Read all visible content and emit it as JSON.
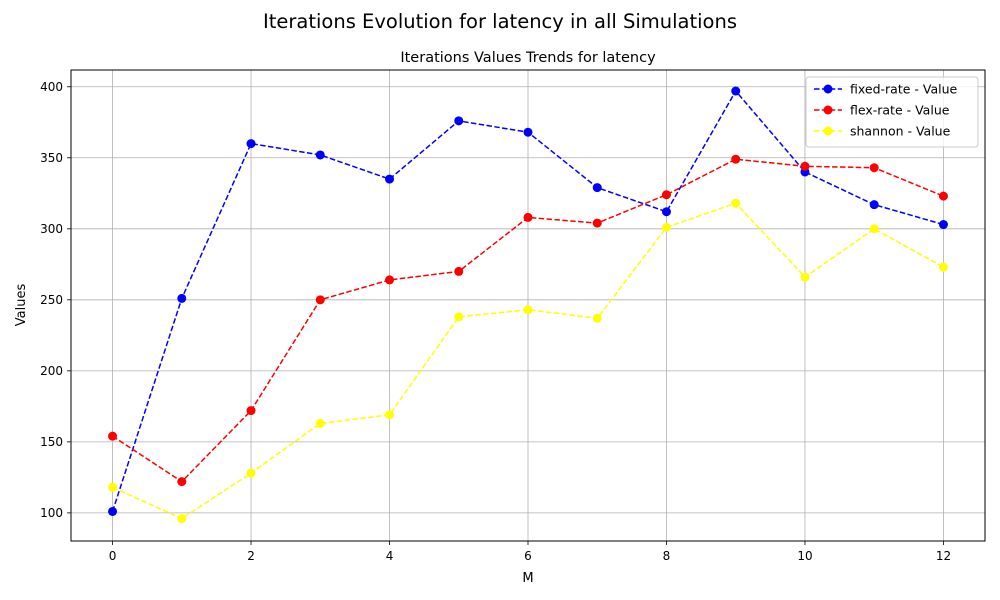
{
  "figure": {
    "suptitle": "Iterations Evolution for latency in all Simulations"
  },
  "chart_data": {
    "type": "line",
    "title": "Iterations Values Trends for latency",
    "xlabel": "M",
    "ylabel": "Values",
    "x": [
      0,
      1,
      2,
      3,
      4,
      5,
      6,
      7,
      8,
      9,
      10,
      11,
      12
    ],
    "xlim": [
      -0.6,
      12.6
    ],
    "ylim": [
      80.2,
      411.8
    ],
    "xticks": [
      0,
      2,
      4,
      6,
      8,
      10,
      12
    ],
    "yticks": [
      100,
      150,
      200,
      250,
      300,
      350,
      400
    ],
    "grid": true,
    "legend_position": "top-right",
    "line_style": "dashed",
    "marker": "circle",
    "series": [
      {
        "name": "fixed-rate - Value",
        "color": "#0000ff",
        "values": [
          101,
          251,
          360,
          352,
          335,
          376,
          368,
          329,
          312,
          397,
          340,
          317,
          303
        ]
      },
      {
        "name": "flex-rate - Value",
        "color": "#ff0000",
        "values": [
          154,
          122,
          172,
          250,
          264,
          270,
          308,
          304,
          324,
          349,
          344,
          343,
          323
        ]
      },
      {
        "name": "shannon - Value",
        "color": "#ffff00",
        "values": [
          118,
          96,
          128,
          163,
          169,
          238,
          243,
          237,
          301,
          318,
          266,
          300,
          273
        ]
      }
    ]
  }
}
